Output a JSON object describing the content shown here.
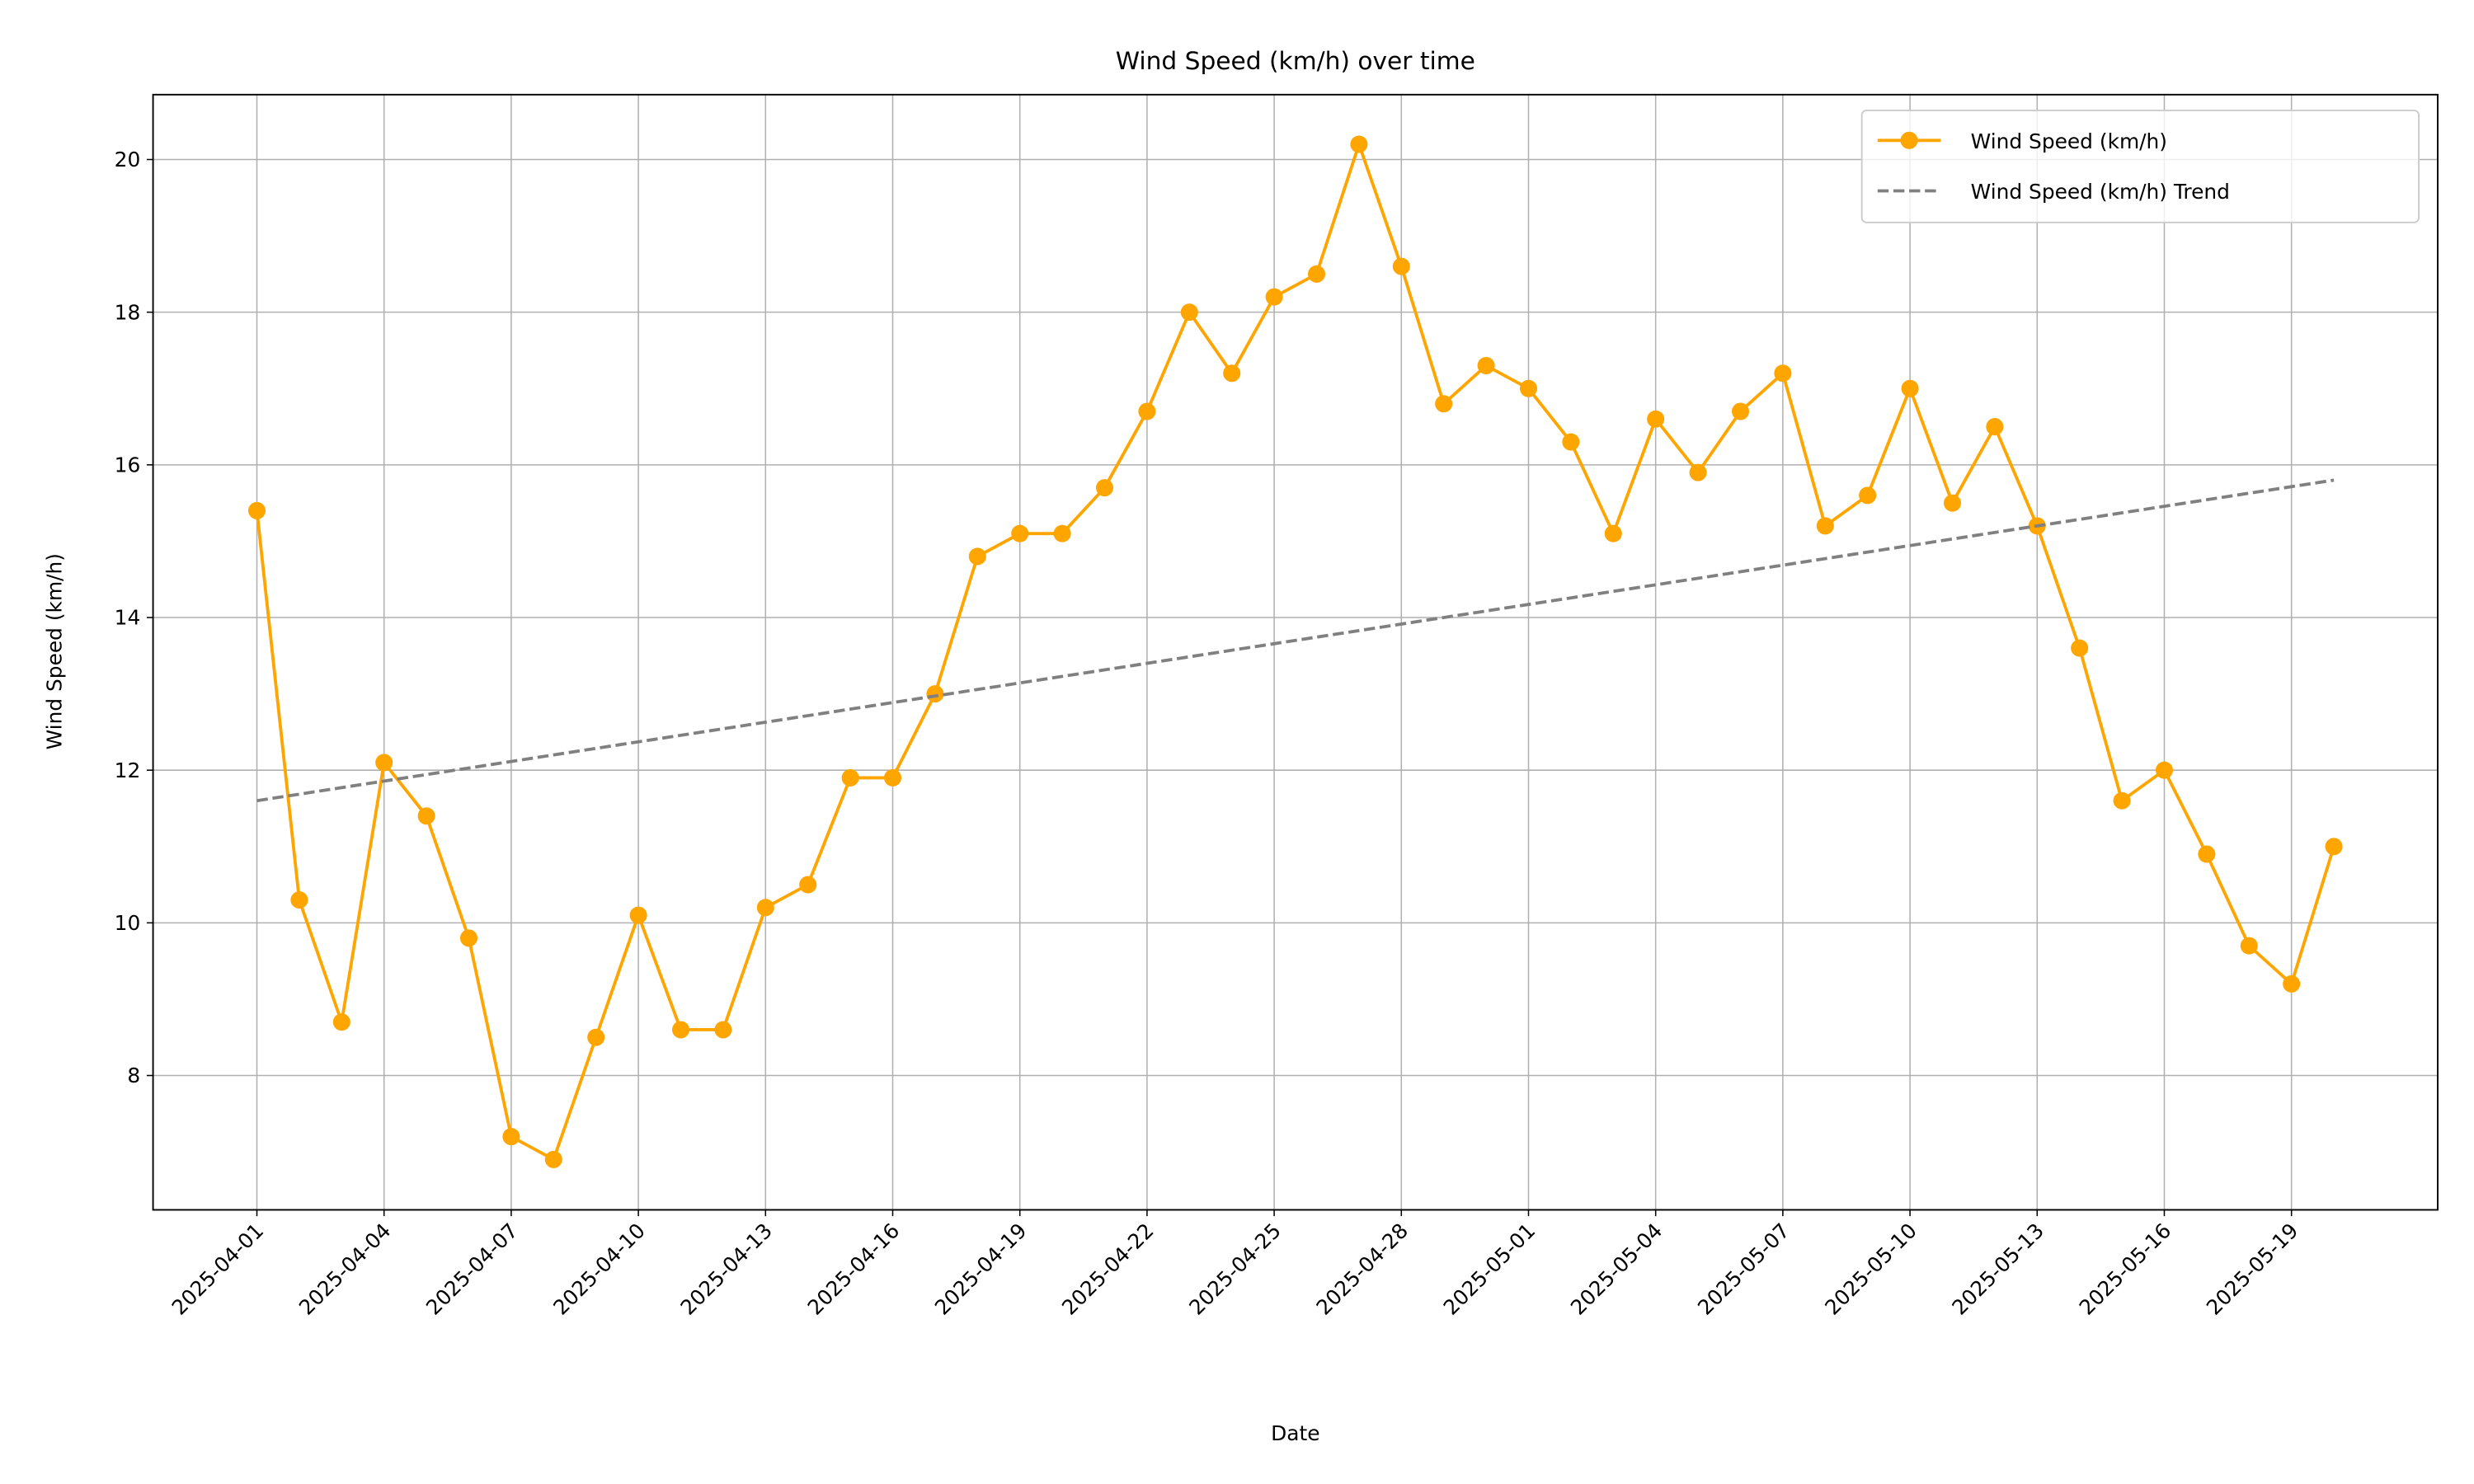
{
  "chart_data": {
    "type": "line",
    "title": "Wind Speed (km/h) over time",
    "xlabel": "Date",
    "ylabel": "Wind Speed (km/h)",
    "series": [
      {
        "name": "Wind Speed (km/h)",
        "color": "#ffa500",
        "marker": "o",
        "linestyle": "solid",
        "x": [
          "2025-04-01",
          "2025-04-02",
          "2025-04-03",
          "2025-04-04",
          "2025-04-05",
          "2025-04-06",
          "2025-04-07",
          "2025-04-08",
          "2025-04-09",
          "2025-04-10",
          "2025-04-11",
          "2025-04-12",
          "2025-04-13",
          "2025-04-14",
          "2025-04-15",
          "2025-04-16",
          "2025-04-17",
          "2025-04-18",
          "2025-04-19",
          "2025-04-20",
          "2025-04-21",
          "2025-04-22",
          "2025-04-23",
          "2025-04-24",
          "2025-04-25",
          "2025-04-26",
          "2025-04-27",
          "2025-04-28",
          "2025-04-29",
          "2025-04-30",
          "2025-05-01",
          "2025-05-02",
          "2025-05-03",
          "2025-05-04",
          "2025-05-05",
          "2025-05-06",
          "2025-05-07",
          "2025-05-08",
          "2025-05-09",
          "2025-05-10",
          "2025-05-11",
          "2025-05-12",
          "2025-05-13",
          "2025-05-14",
          "2025-05-15",
          "2025-05-16",
          "2025-05-17",
          "2025-05-18",
          "2025-05-19",
          "2025-05-20"
        ],
        "values": [
          15.4,
          10.3,
          8.7,
          12.1,
          11.4,
          9.8,
          7.2,
          6.9,
          8.5,
          10.1,
          8.6,
          8.6,
          10.2,
          10.5,
          11.9,
          11.9,
          13.0,
          14.8,
          15.1,
          15.1,
          15.7,
          16.7,
          18.0,
          17.2,
          18.2,
          18.5,
          20.2,
          18.6,
          16.8,
          17.3,
          17.0,
          16.3,
          15.1,
          16.6,
          15.9,
          16.7,
          17.2,
          15.2,
          15.6,
          17.0,
          15.5,
          16.5,
          15.2,
          13.6,
          11.6,
          12.0,
          10.9,
          9.7,
          9.2,
          11.0
        ]
      },
      {
        "name": "Wind Speed (km/h) Trend",
        "color": "#808080",
        "linestyle": "dashed",
        "x": [
          "2025-04-01",
          "2025-05-20"
        ],
        "values": [
          11.6,
          15.8
        ]
      }
    ],
    "xticks": [
      "2025-04-01",
      "2025-04-04",
      "2025-04-07",
      "2025-04-10",
      "2025-04-13",
      "2025-04-16",
      "2025-04-19",
      "2025-04-22",
      "2025-04-25",
      "2025-04-28",
      "2025-05-01",
      "2025-05-04",
      "2025-05-07",
      "2025-05-10",
      "2025-05-13",
      "2025-05-16",
      "2025-05-19"
    ],
    "ylim": [
      6.24,
      20.85
    ],
    "yticks": [
      8,
      10,
      12,
      14,
      16,
      18,
      20
    ],
    "grid": true,
    "legend": "upper right"
  }
}
